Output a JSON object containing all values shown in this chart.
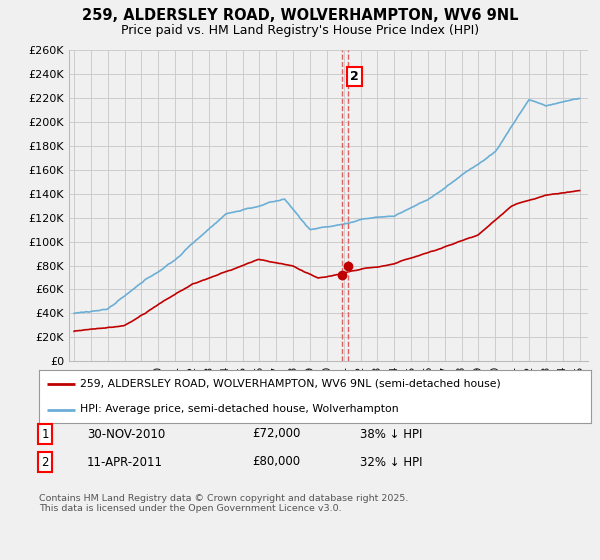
{
  "title": "259, ALDERSLEY ROAD, WOLVERHAMPTON, WV6 9NL",
  "subtitle": "Price paid vs. HM Land Registry's House Price Index (HPI)",
  "ylim": [
    0,
    260000
  ],
  "yticks": [
    0,
    20000,
    40000,
    60000,
    80000,
    100000,
    120000,
    140000,
    160000,
    180000,
    200000,
    220000,
    240000,
    260000
  ],
  "ytick_labels": [
    "£0",
    "£20K",
    "£40K",
    "£60K",
    "£80K",
    "£100K",
    "£120K",
    "£140K",
    "£160K",
    "£180K",
    "£200K",
    "£220K",
    "£240K",
    "£260K"
  ],
  "hpi_color": "#6baed6",
  "price_color": "#c00000",
  "vline_color": "#e06060",
  "background_color": "#f0f0f0",
  "plot_bg_color": "#f0f0f0",
  "grid_color": "#cccccc",
  "legend_label_red": "259, ALDERSLEY ROAD, WOLVERHAMPTON, WV6 9NL (semi-detached house)",
  "legend_label_blue": "HPI: Average price, semi-detached house, Wolverhampton",
  "transaction1_date": "30-NOV-2010",
  "transaction1_price": "£72,000",
  "transaction1_hpi": "38% ↓ HPI",
  "transaction2_date": "11-APR-2011",
  "transaction2_price": "£80,000",
  "transaction2_hpi": "32% ↓ HPI",
  "footer": "Contains HM Land Registry data © Crown copyright and database right 2025.\nThis data is licensed under the Open Government Licence v3.0.",
  "sale_year1": 2010.92,
  "sale_year2": 2011.28,
  "sale_price1": 72000,
  "sale_price2": 80000,
  "xlim_left": 1994.7,
  "xlim_right": 2025.5
}
